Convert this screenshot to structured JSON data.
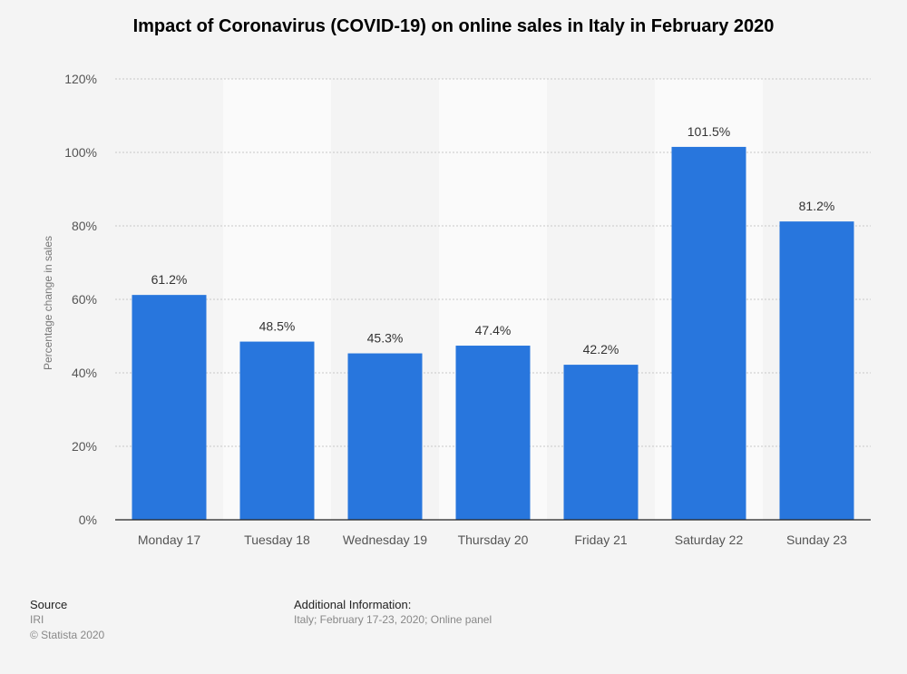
{
  "chart_data": {
    "type": "bar",
    "title": "Impact of Coronavirus (COVID-19) on online sales in Italy in February 2020",
    "xlabel": "",
    "ylabel": "Percentage change in sales",
    "categories": [
      "Monday 17",
      "Tuesday 18",
      "Wednesday 19",
      "Thursday 20",
      "Friday 21",
      "Saturday 22",
      "Sunday 23"
    ],
    "values": [
      61.2,
      48.5,
      45.3,
      47.4,
      42.2,
      101.5,
      81.2
    ],
    "value_labels": [
      "61.2%",
      "48.5%",
      "45.3%",
      "47.4%",
      "42.2%",
      "101.5%",
      "81.2%"
    ],
    "ylim": [
      0,
      120
    ],
    "yticks": [
      0,
      20,
      40,
      60,
      80,
      100,
      120
    ],
    "ytick_labels": [
      "0%",
      "20%",
      "40%",
      "60%",
      "80%",
      "100%",
      "120%"
    ],
    "grid": true,
    "bar_color": "#2876dd"
  },
  "footer": {
    "source_heading": "Source",
    "source_lines": [
      "IRI",
      "© Statista 2020"
    ],
    "info_heading": "Additional Information:",
    "info_text": "Italy; February 17-23, 2020; Online panel"
  }
}
